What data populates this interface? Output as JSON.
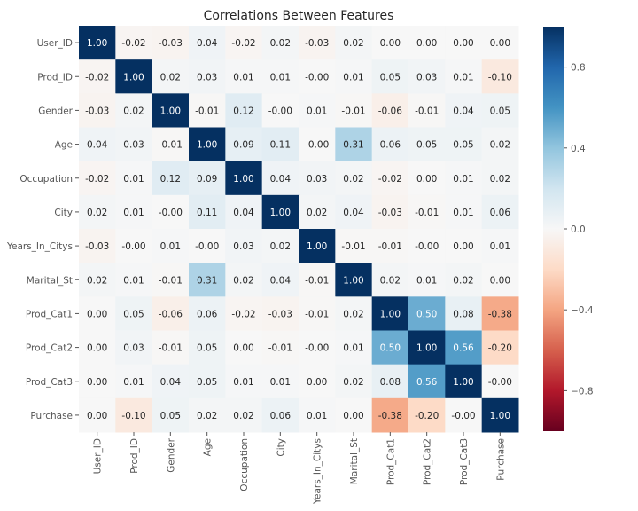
{
  "chart_data": {
    "type": "heatmap",
    "title": "Correlations Between Features",
    "labels": [
      "User_ID",
      "Prod_ID",
      "Gender",
      "Age",
      "Occupation",
      "City",
      "Years_In_Citys",
      "Marital_St",
      "Prod_Cat1",
      "Prod_Cat2",
      "Prod_Cat3",
      "Purchase"
    ],
    "values": [
      [
        "1.00",
        "-0.02",
        "-0.03",
        "0.04",
        "-0.02",
        "0.02",
        "-0.03",
        "0.02",
        "0.00",
        "0.00",
        "0.00",
        "0.00"
      ],
      [
        "-0.02",
        "1.00",
        "0.02",
        "0.03",
        "0.01",
        "0.01",
        "-0.00",
        "0.01",
        "0.05",
        "0.03",
        "0.01",
        "-0.10"
      ],
      [
        "-0.03",
        "0.02",
        "1.00",
        "-0.01",
        "0.12",
        "-0.00",
        "0.01",
        "-0.01",
        "-0.06",
        "-0.01",
        "0.04",
        "0.05"
      ],
      [
        "0.04",
        "0.03",
        "-0.01",
        "1.00",
        "0.09",
        "0.11",
        "-0.00",
        "0.31",
        "0.06",
        "0.05",
        "0.05",
        "0.02"
      ],
      [
        "-0.02",
        "0.01",
        "0.12",
        "0.09",
        "1.00",
        "0.04",
        "0.03",
        "0.02",
        "-0.02",
        "0.00",
        "0.01",
        "0.02"
      ],
      [
        "0.02",
        "0.01",
        "-0.00",
        "0.11",
        "0.04",
        "1.00",
        "0.02",
        "0.04",
        "-0.03",
        "-0.01",
        "0.01",
        "0.06"
      ],
      [
        "-0.03",
        "-0.00",
        "0.01",
        "-0.00",
        "0.03",
        "0.02",
        "1.00",
        "-0.01",
        "-0.01",
        "-0.00",
        "0.00",
        "0.01"
      ],
      [
        "0.02",
        "0.01",
        "-0.01",
        "0.31",
        "0.02",
        "0.04",
        "-0.01",
        "1.00",
        "0.02",
        "0.01",
        "0.02",
        "0.00"
      ],
      [
        "0.00",
        "0.05",
        "-0.06",
        "0.06",
        "-0.02",
        "-0.03",
        "-0.01",
        "0.02",
        "1.00",
        "0.50",
        "0.08",
        "-0.38"
      ],
      [
        "0.00",
        "0.03",
        "-0.01",
        "0.05",
        "0.00",
        "-0.01",
        "-0.00",
        "0.01",
        "0.50",
        "1.00",
        "0.56",
        "-0.20"
      ],
      [
        "0.00",
        "0.01",
        "0.04",
        "0.05",
        "0.01",
        "0.01",
        "0.00",
        "0.02",
        "0.08",
        "0.56",
        "1.00",
        "-0.00"
      ],
      [
        "0.00",
        "-0.10",
        "0.05",
        "0.02",
        "0.02",
        "0.06",
        "0.01",
        "0.00",
        "-0.38",
        "-0.20",
        "-0.00",
        "1.00"
      ]
    ],
    "colormap": "RdBu_r",
    "vmin": -1,
    "vmax": 1,
    "colorbar_ticks": [
      "0.8",
      "0.4",
      "0.0",
      "−0.4",
      "−0.8"
    ],
    "colorbar_tick_values": [
      0.8,
      0.4,
      0.0,
      -0.4,
      -0.8
    ],
    "grid": false
  }
}
